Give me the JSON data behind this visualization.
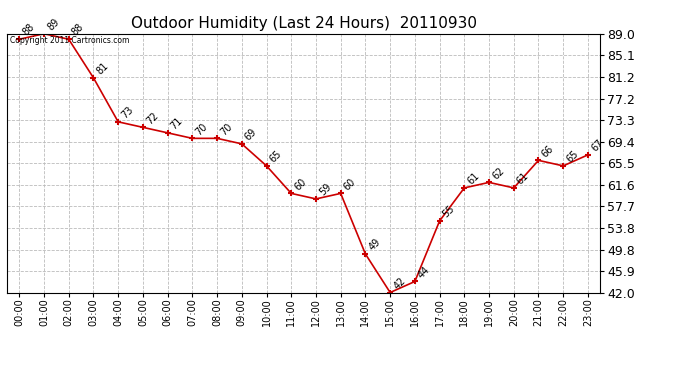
{
  "title": "Outdoor Humidity (Last 24 Hours)  20110930",
  "copyright_text": "Copyright 2011 Cartronics.com",
  "x_labels": [
    "00:00",
    "01:00",
    "02:00",
    "03:00",
    "04:00",
    "05:00",
    "06:00",
    "07:00",
    "08:00",
    "09:00",
    "10:00",
    "11:00",
    "12:00",
    "13:00",
    "14:00",
    "15:00",
    "16:00",
    "17:00",
    "18:00",
    "19:00",
    "20:00",
    "21:00",
    "22:00",
    "23:00"
  ],
  "x_values": [
    0,
    1,
    2,
    3,
    4,
    5,
    6,
    7,
    8,
    9,
    10,
    11,
    12,
    13,
    14,
    15,
    16,
    17,
    18,
    19,
    20,
    21,
    22,
    23
  ],
  "y_values": [
    88,
    89,
    88,
    81,
    73,
    72,
    71,
    70,
    70,
    69,
    65,
    60,
    59,
    60,
    49,
    42,
    44,
    55,
    61,
    62,
    61,
    66,
    65,
    67
  ],
  "ylim": [
    42.0,
    89.0
  ],
  "yticks": [
    42.0,
    45.9,
    49.8,
    53.8,
    57.7,
    61.6,
    65.5,
    69.4,
    73.3,
    77.2,
    81.2,
    85.1,
    89.0
  ],
  "line_color": "#cc0000",
  "marker_color": "#cc0000",
  "bg_color": "#ffffff",
  "grid_color": "#bbbbbb",
  "title_fontsize": 11,
  "annotation_fontsize": 7,
  "ytick_fontsize": 9,
  "xtick_fontsize": 7
}
